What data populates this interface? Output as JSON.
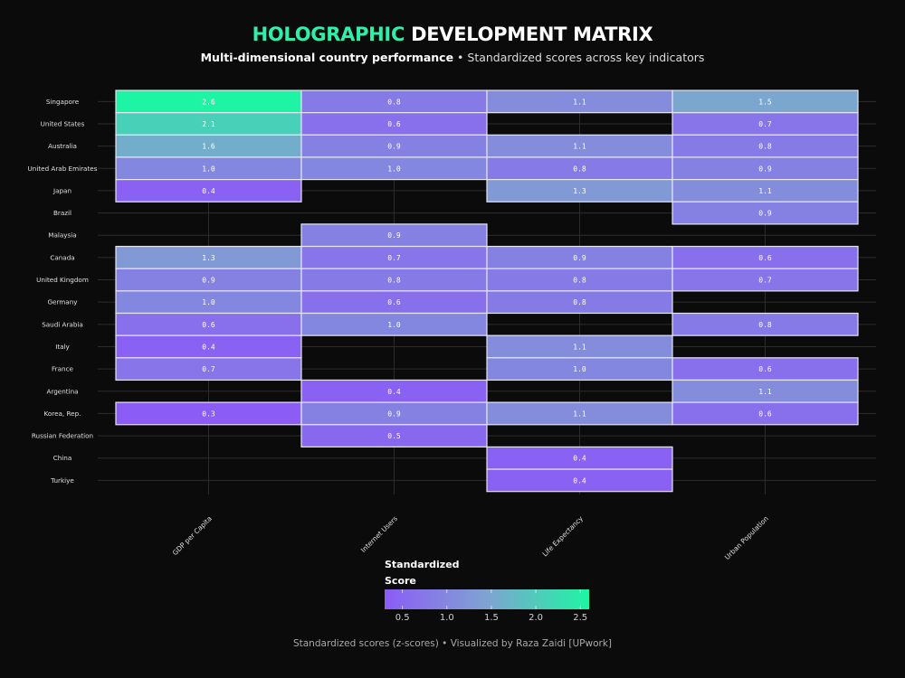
{
  "title_accent": "HOLOGRAPHIC",
  "title_rest": "DEVELOPMENT MATRIX",
  "subtitle_bold": "Multi-dimensional country performance",
  "subtitle_rest": " • Standardized scores across key indicators",
  "caption": "Standardized scores (z-scores) • Visualized by Raza Zaidi [UPwork]",
  "legend_title_line1": "Standardized",
  "legend_title_line2": "Score",
  "colors": {
    "low": "#8b5cf6",
    "mid": "#7fa3d1",
    "high": "#1ef5a4",
    "background": "#0b0b0b"
  },
  "chart_data": {
    "type": "heatmap",
    "title": "HOLOGRAPHIC DEVELOPMENT MATRIX",
    "x_categories": [
      "GDP per Capita",
      "Internet Users",
      "Life Expectancy",
      "Urban Population"
    ],
    "y_categories": [
      "Singapore",
      "United States",
      "Australia",
      "United Arab Emirates",
      "Japan",
      "Brazil",
      "Malaysia",
      "Canada",
      "United Kingdom",
      "Germany",
      "Saudi Arabia",
      "Italy",
      "France",
      "Argentina",
      "Korea, Rep.",
      "Russian Federation",
      "China",
      "Turkiye"
    ],
    "values": [
      [
        2.6,
        0.8,
        1.1,
        1.5
      ],
      [
        2.1,
        0.6,
        null,
        0.7
      ],
      [
        1.6,
        0.9,
        1.1,
        0.8
      ],
      [
        1.0,
        1.0,
        0.8,
        0.9
      ],
      [
        0.4,
        null,
        1.3,
        1.1
      ],
      [
        null,
        null,
        null,
        0.9
      ],
      [
        null,
        0.9,
        null,
        null
      ],
      [
        1.3,
        0.7,
        0.9,
        0.6
      ],
      [
        0.9,
        0.8,
        0.8,
        0.7
      ],
      [
        1.0,
        0.6,
        0.8,
        null
      ],
      [
        0.6,
        1.0,
        null,
        0.8
      ],
      [
        0.4,
        null,
        1.1,
        null
      ],
      [
        0.7,
        null,
        1.0,
        0.6
      ],
      [
        null,
        0.4,
        null,
        1.1
      ],
      [
        0.3,
        0.9,
        1.1,
        0.6
      ],
      [
        null,
        0.5,
        null,
        null
      ],
      [
        null,
        null,
        0.4,
        null
      ],
      [
        null,
        null,
        0.4,
        null
      ]
    ],
    "colorbar": {
      "ticks": [
        0.5,
        1.0,
        1.5,
        2.0,
        2.5
      ],
      "tick_labels": [
        "0.5",
        "1.0",
        "1.5",
        "2.0",
        "2.5"
      ],
      "range": [
        0.3,
        2.6
      ]
    },
    "grid": true,
    "legend_position": "bottom-center"
  }
}
